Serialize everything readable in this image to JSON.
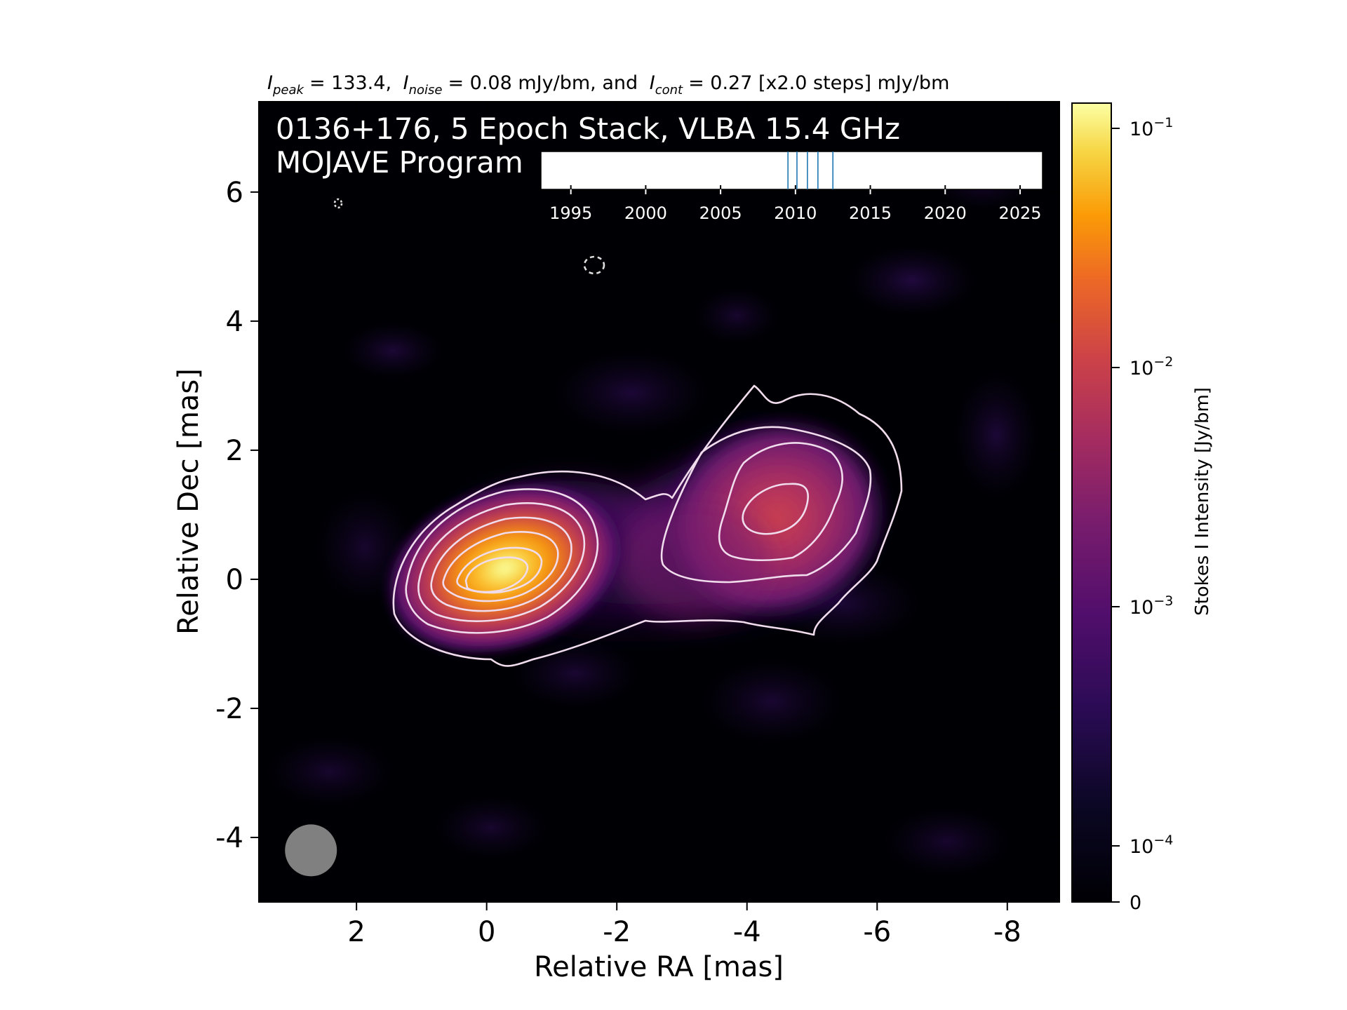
{
  "header": {
    "peak_symbol": "I",
    "peak_sub": "peak",
    "peak_value": "= 133.4,",
    "noise_symbol": "I",
    "noise_sub": "noise",
    "noise_value": "= 0.08 mJy/bm, and",
    "cont_symbol": "I",
    "cont_sub": "cont",
    "cont_value": "= 0.27 [x2.0 steps] mJy/bm"
  },
  "overlay": {
    "title_line1": "0136+176, 5 Epoch Stack, VLBA 15.4 GHz",
    "title_line2": "MOJAVE Program"
  },
  "chart_data": [
    {
      "type": "heatmap",
      "title": "",
      "xlabel": "Relative RA [mas]",
      "ylabel": "Relative Dec [mas]",
      "xlim": [
        3.5,
        -8.8
      ],
      "ylim": [
        -5.0,
        7.4
      ],
      "x_ticks": [
        2,
        0,
        -2,
        -4,
        -6,
        -8
      ],
      "y_ticks": [
        6,
        4,
        2,
        0,
        -2,
        -4
      ],
      "x_tick_labels": [
        "2",
        "0",
        "-2",
        "-4",
        "-6",
        "-8"
      ],
      "y_tick_labels": [
        "6",
        "4",
        "2",
        "0",
        "-2",
        "-4"
      ],
      "colormap": "inferno",
      "components": [
        {
          "name": "core",
          "ra": 0.0,
          "dec": 0.0,
          "peak_jy_per_beam": 0.1334
        },
        {
          "name": "jet-knot",
          "ra": -4.5,
          "dec": 0.9,
          "peak_jy_per_beam": 0.0036
        }
      ],
      "beam": {
        "ra": 2.7,
        "dec": -4.2,
        "diameter_mas": 0.8
      },
      "contour_base_mjy_per_beam": 0.27,
      "contour_step_factor": 2.0,
      "contour_levels_mjy_per_beam": [
        0.27,
        0.54,
        1.08,
        2.16,
        4.32,
        8.64,
        17.28,
        34.56,
        69.12
      ],
      "colorbar": {
        "label": "Stokes I Intensity [Jy/bm]",
        "scale": "log",
        "range_jy_per_beam": [
          0,
          0.1334
        ],
        "tick_values": [
          0.1,
          0.01,
          0.001,
          0.0001,
          0
        ],
        "ticks": [
          {
            "base": "10",
            "exp": "−1"
          },
          {
            "base": "10",
            "exp": "−2"
          },
          {
            "base": "10",
            "exp": "−3"
          },
          {
            "base": "10",
            "exp": "−4"
          },
          {
            "base": "0",
            "exp": ""
          }
        ]
      }
    },
    {
      "type": "line",
      "title": "",
      "xlim": [
        1993,
        2026.5
      ],
      "x_ticks": [
        "1995",
        "2000",
        "2005",
        "2010",
        "2015",
        "2020",
        "2025"
      ],
      "epochs": [
        2009.5,
        2010.1,
        2010.8,
        2011.5,
        2012.5
      ],
      "line_color": "#1f77b4"
    }
  ]
}
